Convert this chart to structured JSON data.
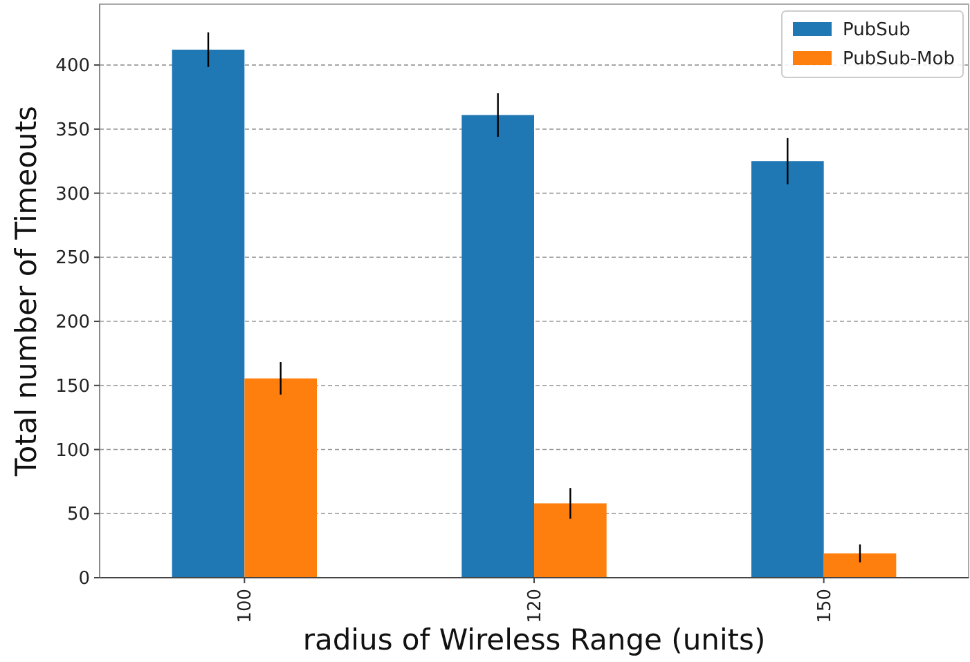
{
  "chart_data": {
    "type": "bar",
    "xlabel": "radius of Wireless Range (units)",
    "ylabel": "Total number of Timeouts",
    "categories": [
      "100",
      "120",
      "150"
    ],
    "series": [
      {
        "name": "PubSub",
        "color": "#1f77b4",
        "values": [
          412,
          361,
          325
        ],
        "errors": [
          13.5,
          17,
          18
        ]
      },
      {
        "name": "PubSub-Mob",
        "color": "#ff7f0e",
        "values": [
          155.5,
          58,
          19
        ],
        "errors": [
          12.7,
          12,
          7
        ]
      }
    ],
    "ylim": [
      0,
      447.5
    ],
    "yticks": [
      0,
      50,
      100,
      150,
      200,
      250,
      300,
      350,
      400
    ],
    "grid": "y",
    "legend": "top right"
  }
}
